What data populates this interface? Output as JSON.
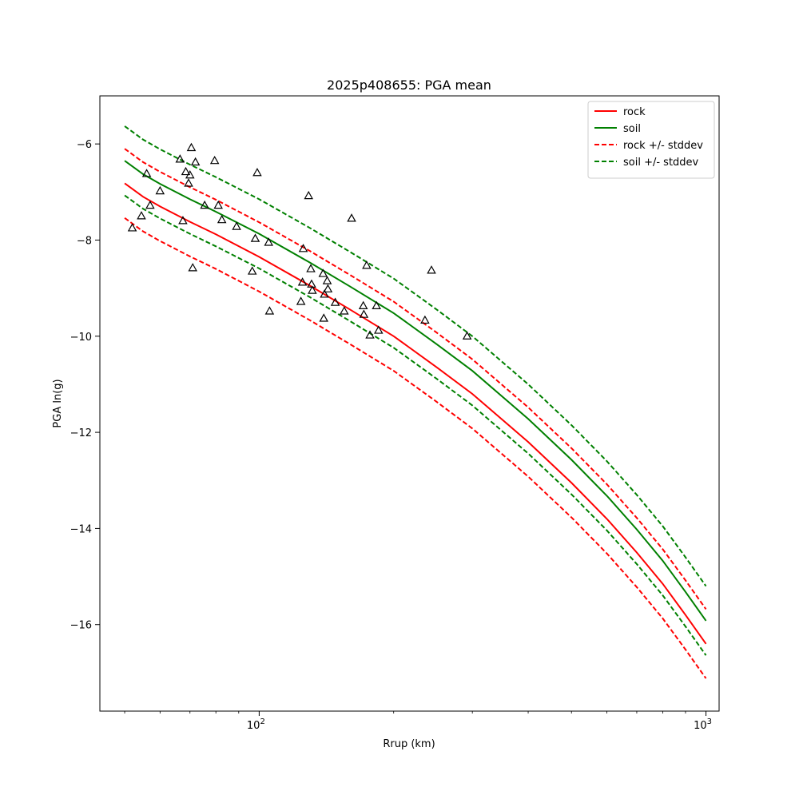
{
  "chart_data": {
    "type": "line",
    "title": "2025p408655: PGA mean",
    "xlabel": "Rrup (km)",
    "ylabel": "PGA ln(g)",
    "xscale": "log",
    "xlim": [
      44,
      1070
    ],
    "ylim": [
      -17.8,
      -5.0
    ],
    "x_major_ticks": [
      {
        "value": 100,
        "label": "10",
        "exp": "2"
      },
      {
        "value": 1000,
        "label": "10",
        "exp": "3"
      }
    ],
    "x_minor_ticks": [
      50,
      60,
      70,
      80,
      90,
      200,
      300,
      400,
      500,
      600,
      700,
      800,
      900
    ],
    "y_ticks": [
      {
        "value": -6,
        "label": "−6"
      },
      {
        "value": -8,
        "label": "−8"
      },
      {
        "value": -10,
        "label": "−10"
      },
      {
        "value": -12,
        "label": "−12"
      },
      {
        "value": -14,
        "label": "−14"
      },
      {
        "value": -16,
        "label": "−16"
      }
    ],
    "grid": false,
    "legend_position": "top-right",
    "series": [
      {
        "name": "rock",
        "color": "#ff0000",
        "dash": "solid",
        "x": [
          50,
          55,
          60,
          70,
          80,
          100,
          130,
          160,
          200,
          250,
          300,
          400,
          500,
          600,
          700,
          800,
          900,
          1000
        ],
        "y": [
          -6.82,
          -7.1,
          -7.3,
          -7.62,
          -7.88,
          -8.35,
          -8.95,
          -9.45,
          -10.0,
          -10.65,
          -11.2,
          -12.2,
          -13.05,
          -13.8,
          -14.5,
          -15.15,
          -15.8,
          -16.4
        ]
      },
      {
        "name": "soil",
        "color": "#008000",
        "dash": "solid",
        "x": [
          50,
          55,
          60,
          70,
          80,
          100,
          130,
          160,
          200,
          250,
          300,
          400,
          500,
          600,
          700,
          800,
          900,
          1000
        ],
        "y": [
          -6.35,
          -6.63,
          -6.83,
          -7.15,
          -7.41,
          -7.87,
          -8.47,
          -8.97,
          -9.52,
          -10.17,
          -10.72,
          -11.72,
          -12.57,
          -13.32,
          -14.02,
          -14.67,
          -15.32,
          -15.92
        ]
      },
      {
        "name": "rock +/- stddev",
        "color": "#ff0000",
        "dash": "dashed",
        "x": [
          50,
          55,
          60,
          70,
          80,
          100,
          130,
          160,
          200,
          250,
          300,
          400,
          500,
          600,
          700,
          800,
          900,
          1000
        ],
        "y": [
          -6.1,
          -6.38,
          -6.58,
          -6.9,
          -7.16,
          -7.63,
          -8.23,
          -8.73,
          -9.28,
          -9.93,
          -10.48,
          -11.48,
          -12.33,
          -13.08,
          -13.78,
          -14.43,
          -15.08,
          -15.68
        ]
      },
      {
        "name": "",
        "color": "#ff0000",
        "dash": "dashed",
        "x": [
          50,
          55,
          60,
          70,
          80,
          100,
          130,
          160,
          200,
          250,
          300,
          400,
          500,
          600,
          700,
          800,
          900,
          1000
        ],
        "y": [
          -7.54,
          -7.82,
          -8.02,
          -8.34,
          -8.6,
          -9.07,
          -9.67,
          -10.17,
          -10.72,
          -11.37,
          -11.92,
          -12.92,
          -13.77,
          -14.52,
          -15.22,
          -15.87,
          -16.52,
          -17.12
        ]
      },
      {
        "name": "soil +/- stddev",
        "color": "#008000",
        "dash": "dashed",
        "x": [
          50,
          55,
          60,
          70,
          80,
          100,
          130,
          160,
          200,
          250,
          300,
          400,
          500,
          600,
          700,
          800,
          900,
          1000
        ],
        "y": [
          -5.63,
          -5.91,
          -6.11,
          -6.43,
          -6.69,
          -7.15,
          -7.75,
          -8.25,
          -8.8,
          -9.45,
          -10.0,
          -11.0,
          -11.85,
          -12.6,
          -13.3,
          -13.95,
          -14.6,
          -15.2
        ]
      },
      {
        "name": "",
        "color": "#008000",
        "dash": "dashed",
        "x": [
          50,
          55,
          60,
          70,
          80,
          100,
          130,
          160,
          200,
          250,
          300,
          400,
          500,
          600,
          700,
          800,
          900,
          1000
        ],
        "y": [
          -7.07,
          -7.35,
          -7.55,
          -7.87,
          -8.13,
          -8.59,
          -9.19,
          -9.69,
          -10.24,
          -10.89,
          -11.44,
          -12.44,
          -13.29,
          -14.04,
          -14.74,
          -15.39,
          -16.04,
          -16.64
        ]
      }
    ],
    "observations": {
      "marker": "triangle",
      "points": [
        [
          52,
          -7.75
        ],
        [
          54.5,
          -7.5
        ],
        [
          56.0,
          -6.62
        ],
        [
          57.0,
          -7.28
        ],
        [
          60.0,
          -6.98
        ],
        [
          66.5,
          -6.32
        ],
        [
          67.5,
          -7.6
        ],
        [
          68.5,
          -6.58
        ],
        [
          69.5,
          -6.82
        ],
        [
          70.0,
          -6.65
        ],
        [
          70.5,
          -6.08
        ],
        [
          71.0,
          -8.58
        ],
        [
          72.0,
          -6.38
        ],
        [
          75.5,
          -7.28
        ],
        [
          79.5,
          -6.35
        ],
        [
          81.0,
          -7.28
        ],
        [
          82.5,
          -7.58
        ],
        [
          89.0,
          -7.72
        ],
        [
          96.5,
          -8.65
        ],
        [
          98.0,
          -7.97
        ],
        [
          99.0,
          -6.6
        ],
        [
          105.0,
          -8.05
        ],
        [
          105.5,
          -9.48
        ],
        [
          124.0,
          -9.28
        ],
        [
          125.0,
          -8.88
        ],
        [
          125.5,
          -8.18
        ],
        [
          129.0,
          -7.08
        ],
        [
          130.5,
          -8.6
        ],
        [
          131.0,
          -8.92
        ],
        [
          131.5,
          -9.05
        ],
        [
          139.0,
          -8.7
        ],
        [
          139.5,
          -9.63
        ],
        [
          140.0,
          -9.13
        ],
        [
          142.0,
          -8.85
        ],
        [
          142.5,
          -9.02
        ],
        [
          148.0,
          -9.3
        ],
        [
          155.0,
          -9.48
        ],
        [
          161.0,
          -7.55
        ],
        [
          171.0,
          -9.37
        ],
        [
          171.5,
          -9.55
        ],
        [
          174.0,
          -8.53
        ],
        [
          177.0,
          -9.98
        ],
        [
          183.0,
          -9.37
        ],
        [
          185.0,
          -9.88
        ],
        [
          235.0,
          -9.67
        ],
        [
          243.0,
          -8.63
        ],
        [
          292.0,
          -10.0
        ]
      ]
    }
  }
}
